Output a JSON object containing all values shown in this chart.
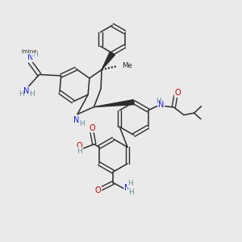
{
  "background_color": "#eaeaea",
  "bond_color": "#2d2d2d",
  "atom_colors": {
    "N": "#1a1aff",
    "O": "#cc0000",
    "C": "#2d2d2d",
    "H": "#6a9090"
  },
  "figsize": [
    3.0,
    3.0
  ],
  "dpi": 100
}
